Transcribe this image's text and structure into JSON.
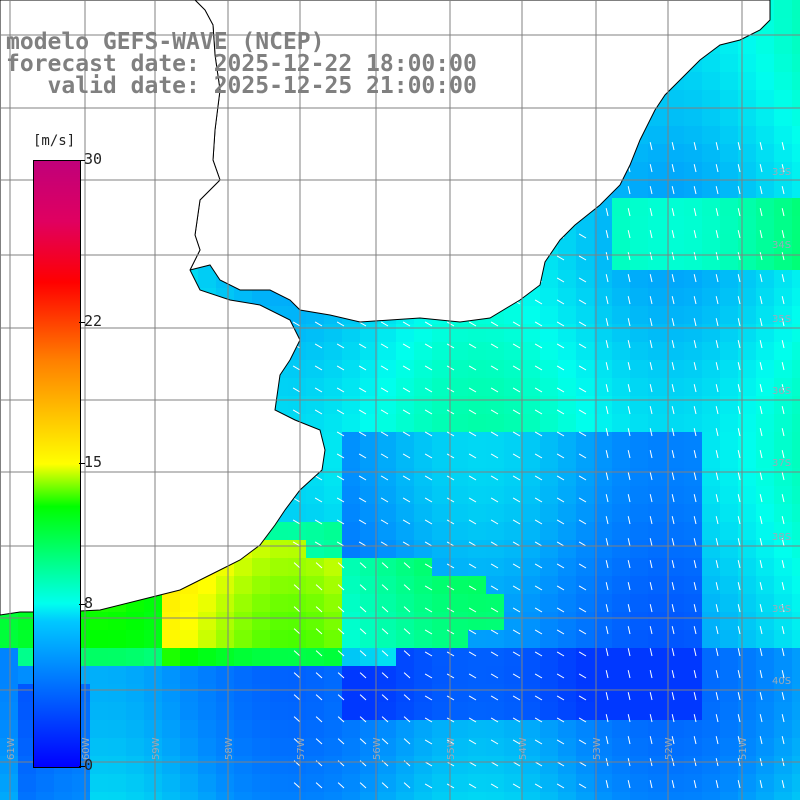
{
  "title": {
    "line1": "modelo GEFS-WAVE (NCEP)",
    "line2": "forecast date: 2025-12-22 18:00:00",
    "line3": "   valid date: 2025-12-25 21:00:00"
  },
  "colorbar": {
    "units": "[m/s]",
    "labels": [
      "30",
      "22",
      "15",
      "8",
      "0"
    ],
    "values": [
      30,
      22,
      15,
      8,
      0
    ]
  },
  "lat_labels": [
    "33S",
    "34S",
    "35S",
    "36S",
    "37S",
    "38S",
    "39S",
    "40S"
  ],
  "lon_labels": [
    "61W",
    "60W",
    "59W",
    "58W",
    "57W",
    "56W",
    "55W",
    "54W",
    "53W",
    "52W",
    "51W"
  ],
  "colors": {
    "land": "#ffffff",
    "grid": "#808080",
    "coast": "#000000",
    "arrow": "#ffffff"
  }
}
